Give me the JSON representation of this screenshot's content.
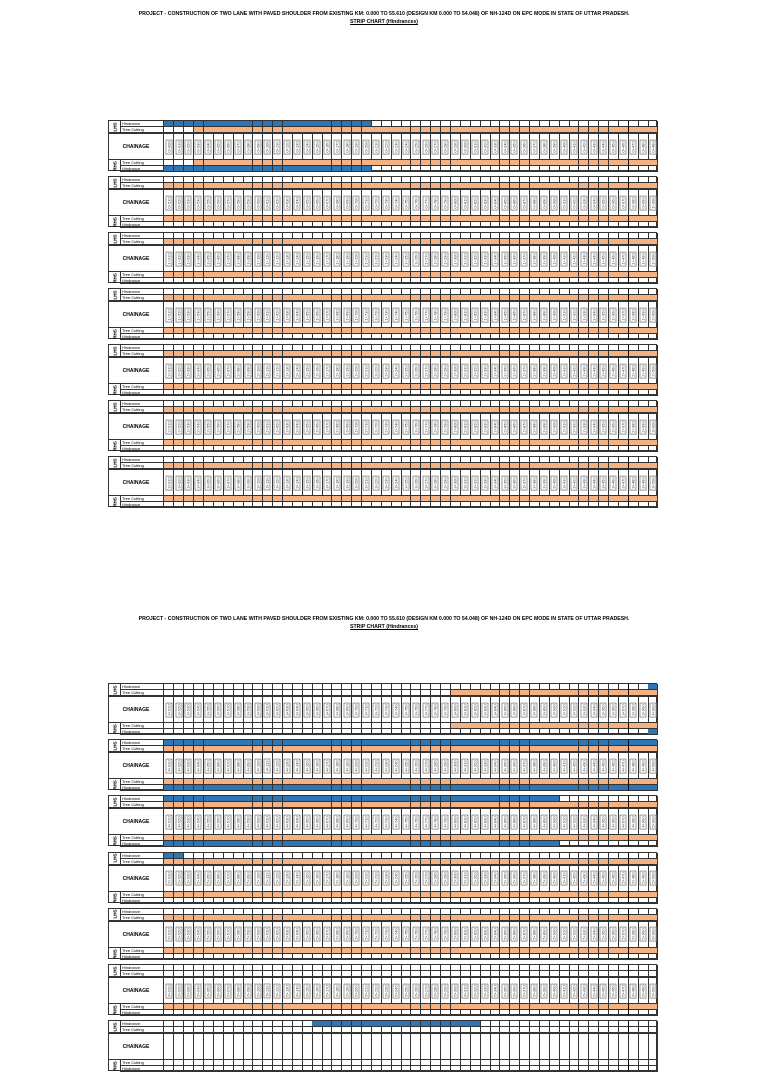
{
  "document": {
    "title": "PROJECT - CONSTRUCTION OF TWO LANE WITH PAVED SHOULDER FROM EXISTING KM: 0.000 TO 55.610 (DESIGN KM 0.000 TO 54.048) OF NH-124D ON EPC MODE IN STATE OF UTTAR PRADESH.",
    "subtitle": "STRIP CHART (Hindrances)"
  },
  "labels": {
    "lhs": "LHS",
    "rhs": "RHS",
    "hindrance": "Hindrance",
    "tree_cutting": "Tree Cutting",
    "chainage": "CHAINAGE"
  },
  "colors": {
    "hindrance": "#2e75b6",
    "tree_cutting": "#f4b183"
  },
  "pages": [
    {
      "blocks": [
        {
          "start_m": 0,
          "lhs_hindrance": [
            [
              0,
              20
            ]
          ],
          "lhs_tree": [
            [
              3,
              49
            ]
          ],
          "rhs_tree": [
            [
              3,
              49
            ]
          ],
          "rhs_hindrance": [
            [
              0,
              20
            ]
          ]
        },
        {
          "start_m": 510,
          "lhs_hindrance": [],
          "lhs_tree": [
            [
              0,
              49
            ]
          ],
          "rhs_tree": [
            [
              0,
              49
            ]
          ],
          "rhs_hindrance": []
        },
        {
          "start_m": 1010,
          "lhs_hindrance": [],
          "lhs_tree": [
            [
              0,
              49
            ]
          ],
          "rhs_tree": [
            [
              0,
              49
            ]
          ],
          "rhs_hindrance": []
        },
        {
          "start_m": 1510,
          "lhs_hindrance": [],
          "lhs_tree": [
            [
              0,
              49
            ]
          ],
          "rhs_tree": [
            [
              0,
              49
            ]
          ],
          "rhs_hindrance": []
        },
        {
          "start_m": 2010,
          "lhs_hindrance": [],
          "lhs_tree": [
            [
              0,
              49
            ]
          ],
          "rhs_tree": [
            [
              0,
              49
            ]
          ],
          "rhs_hindrance": []
        },
        {
          "start_m": 2510,
          "lhs_hindrance": [],
          "lhs_tree": [
            [
              0,
              49
            ]
          ],
          "rhs_tree": [
            [
              0,
              49
            ]
          ],
          "rhs_hindrance": []
        },
        {
          "start_m": 3010,
          "lhs_hindrance": [],
          "lhs_tree": [
            [
              0,
              49
            ]
          ],
          "rhs_tree": [
            [
              0,
              49
            ]
          ],
          "rhs_hindrance": []
        }
      ]
    },
    {
      "blocks": [
        {
          "start_m": 3510,
          "lhs_hindrance": [
            [
              49,
              49
            ]
          ],
          "lhs_tree": [
            [
              29,
              49
            ]
          ],
          "rhs_tree": [
            [
              29,
              49
            ]
          ],
          "rhs_hindrance": [
            [
              49,
              49
            ]
          ]
        },
        {
          "start_m": 4010,
          "lhs_hindrance": [
            [
              0,
              49
            ]
          ],
          "lhs_tree": [
            [
              0,
              49
            ]
          ],
          "rhs_tree": [
            [
              0,
              49
            ]
          ],
          "rhs_hindrance": [
            [
              0,
              49
            ]
          ]
        },
        {
          "start_m": 4510,
          "lhs_hindrance": [
            [
              0,
              39
            ]
          ],
          "lhs_tree": [
            [
              0,
              49
            ]
          ],
          "rhs_tree": [
            [
              0,
              49
            ]
          ],
          "rhs_hindrance": [
            [
              0,
              39
            ]
          ]
        },
        {
          "start_m": 5010,
          "lhs_hindrance": [
            [
              0,
              1
            ]
          ],
          "lhs_tree": [
            [
              0,
              49
            ]
          ],
          "rhs_tree": [
            [
              0,
              49
            ]
          ],
          "rhs_hindrance": []
        },
        {
          "start_m": 5510,
          "lhs_hindrance": [],
          "lhs_tree": [
            [
              0,
              49
            ]
          ],
          "rhs_tree": [
            [
              0,
              49
            ]
          ],
          "rhs_hindrance": []
        },
        {
          "start_m": 6010,
          "lhs_hindrance": [],
          "lhs_tree": [],
          "rhs_tree": [
            [
              0,
              49
            ]
          ],
          "rhs_hindrance": []
        },
        {
          "start_m": 6510,
          "partial": true,
          "lhs_hindrance": [
            [
              15,
              31
            ]
          ],
          "lhs_tree": [],
          "rhs_tree": [],
          "rhs_hindrance": []
        }
      ]
    }
  ]
}
